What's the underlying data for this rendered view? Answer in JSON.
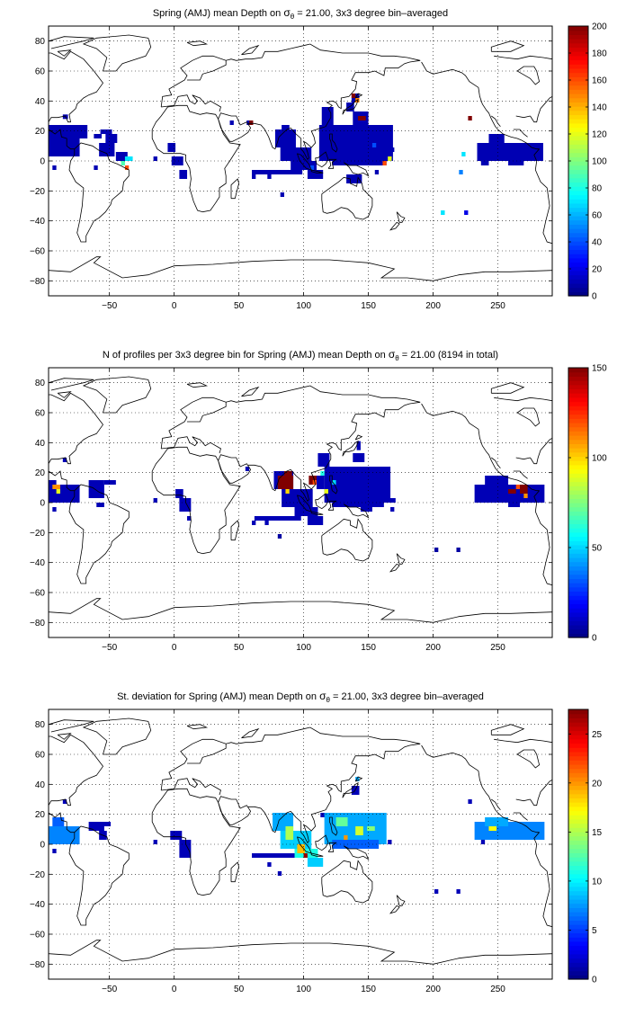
{
  "chart_data": [
    {
      "type": "heatmap",
      "title_parts": [
        "Spring (AMJ) mean Depth on ",
        "σ",
        "θ",
        " = 21.00, 3x3 degree bin–averaged"
      ],
      "xlim": [
        -97,
        292
      ],
      "ylim": [
        -90,
        90
      ],
      "xticks": [
        -50,
        0,
        50,
        100,
        150,
        200,
        250
      ],
      "yticks": [
        -80,
        -60,
        -40,
        -20,
        0,
        20,
        40,
        60,
        80
      ],
      "grid": true,
      "colorbar": {
        "min": 0,
        "max": 200,
        "ticks": [
          0,
          20,
          40,
          60,
          80,
          100,
          120,
          140,
          160,
          180,
          200
        ]
      },
      "default_value": 10,
      "bins": [
        {
          "x": -97,
          "y": 15,
          "w": 30,
          "h": 9
        },
        {
          "x": -97,
          "y": 3,
          "w": 24,
          "h": 12
        },
        {
          "x": -62,
          "y": 15,
          "w": 6,
          "h": 3
        },
        {
          "x": -57,
          "y": 18,
          "w": 9,
          "h": 3
        },
        {
          "x": -53,
          "y": 12,
          "w": 9,
          "h": 6
        },
        {
          "x": -58,
          "y": 3,
          "w": 12,
          "h": 9
        },
        {
          "x": -45,
          "y": 0,
          "w": 9,
          "h": 6
        },
        {
          "x": -86,
          "y": 28,
          "w": 4,
          "h": 3
        },
        {
          "x": -94,
          "y": -6,
          "w": 3,
          "h": 3
        },
        {
          "x": -62,
          "y": -6,
          "w": 3,
          "h": 3
        },
        {
          "x": -16,
          "y": 0,
          "w": 3,
          "h": 3
        },
        {
          "x": -5,
          "y": 6,
          "w": 6,
          "h": 6
        },
        {
          "x": -2,
          "y": -3,
          "w": 9,
          "h": 6
        },
        {
          "x": 4,
          "y": -12,
          "w": 6,
          "h": 6
        },
        {
          "x": 43,
          "y": 24,
          "w": 3,
          "h": 3
        },
        {
          "x": 56,
          "y": 24,
          "w": 3,
          "h": 3
        },
        {
          "x": 60,
          "y": -9,
          "w": 39,
          "h": 3
        },
        {
          "x": 60,
          "y": -12,
          "w": 3,
          "h": 3
        },
        {
          "x": 72,
          "y": -12,
          "w": 3,
          "h": 3
        },
        {
          "x": 78,
          "y": 9,
          "w": 16,
          "h": 12
        },
        {
          "x": 82,
          "y": 0,
          "w": 24,
          "h": 9
        },
        {
          "x": 90,
          "y": -6,
          "w": 20,
          "h": 6
        },
        {
          "x": 103,
          "y": -12,
          "w": 12,
          "h": 6
        },
        {
          "x": 110,
          "y": -12,
          "w": 3,
          "h": 3
        },
        {
          "x": 83,
          "y": 21,
          "w": 6,
          "h": 3
        },
        {
          "x": 114,
          "y": 24,
          "w": 9,
          "h": 12
        },
        {
          "x": 112,
          "y": 0,
          "w": 57,
          "h": 24
        },
        {
          "x": 122,
          "y": -3,
          "w": 42,
          "h": 6
        },
        {
          "x": 138,
          "y": 21,
          "w": 12,
          "h": 12
        },
        {
          "x": 133,
          "y": 33,
          "w": 6,
          "h": 6
        },
        {
          "x": 137,
          "y": 39,
          "w": 6,
          "h": 6
        },
        {
          "x": 143,
          "y": 27,
          "w": 6,
          "h": 3
        },
        {
          "x": 133,
          "y": -15,
          "w": 12,
          "h": 6
        },
        {
          "x": 167,
          "y": 6,
          "w": 3,
          "h": 3
        },
        {
          "x": 155,
          "y": -9,
          "w": 3,
          "h": 3
        },
        {
          "x": 234,
          "y": 0,
          "w": 51,
          "h": 12
        },
        {
          "x": 243,
          "y": 12,
          "w": 12,
          "h": 6
        },
        {
          "x": 258,
          "y": -3,
          "w": 12,
          "h": 3
        },
        {
          "x": 237,
          "y": -3,
          "w": 6,
          "h": 3
        },
        {
          "x": -41,
          "y": -3,
          "w": 3,
          "h": 3,
          "v": 90
        },
        {
          "x": -38,
          "y": 0,
          "w": 6,
          "h": 3,
          "v": 70
        },
        {
          "x": -38,
          "y": -6,
          "w": 3,
          "h": 3,
          "v": 160
        },
        {
          "x": 58,
          "y": 24,
          "w": 3,
          "h": 3,
          "v": 200
        },
        {
          "x": 137,
          "y": 42,
          "w": 3,
          "h": 3,
          "v": 200
        },
        {
          "x": 142,
          "y": 27,
          "w": 6,
          "h": 3,
          "v": 200
        },
        {
          "x": 140,
          "y": 39,
          "w": 3,
          "h": 3,
          "v": 150
        },
        {
          "x": 227,
          "y": 27,
          "w": 3,
          "h": 3,
          "v": 200
        },
        {
          "x": 161,
          "y": -3,
          "w": 3,
          "h": 3,
          "v": 160
        },
        {
          "x": 165,
          "y": 0,
          "w": 3,
          "h": 3,
          "v": 120
        },
        {
          "x": 153,
          "y": 9,
          "w": 3,
          "h": 3,
          "v": 40
        },
        {
          "x": 222,
          "y": 3,
          "w": 3,
          "h": 3,
          "v": 70
        },
        {
          "x": 220,
          "y": -9,
          "w": 3,
          "h": 3,
          "v": 50
        },
        {
          "x": 206,
          "y": -36,
          "w": 3,
          "h": 3,
          "v": 70
        },
        {
          "x": 206,
          "y": -36,
          "w": 3,
          "h": 3,
          "v": 70
        },
        {
          "x": 224,
          "y": -36,
          "w": 3,
          "h": 3,
          "v": 20
        },
        {
          "x": 82,
          "y": -24,
          "w": 3,
          "h": 3,
          "v": 10
        },
        {
          "x": 105,
          "y": -6,
          "w": 3,
          "h": 3,
          "v": 40
        }
      ]
    },
    {
      "type": "heatmap",
      "title_parts": [
        "N of profiles per 3x3 degree bin for Spring (AMJ) mean Depth on ",
        "σ",
        "θ",
        " = 21.00 (8194 in total)"
      ],
      "xlim": [
        -97,
        292
      ],
      "ylim": [
        -90,
        90
      ],
      "xticks": [
        -50,
        0,
        50,
        100,
        150,
        200,
        250
      ],
      "yticks": [
        -80,
        -60,
        -40,
        -20,
        0,
        20,
        40,
        60,
        80
      ],
      "grid": true,
      "colorbar": {
        "min": 0,
        "max": 150,
        "ticks": [
          0,
          50,
          100,
          150
        ]
      },
      "default_value": 8,
      "bins": [
        {
          "x": -97,
          "y": 0,
          "w": 24,
          "h": 12
        },
        {
          "x": -97,
          "y": 12,
          "w": 6,
          "h": 3
        },
        {
          "x": -66,
          "y": 3,
          "w": 12,
          "h": 12
        },
        {
          "x": -54,
          "y": 12,
          "w": 9,
          "h": 3
        },
        {
          "x": -60,
          "y": -3,
          "w": 6,
          "h": 3
        },
        {
          "x": -86,
          "y": 27,
          "w": 3,
          "h": 3
        },
        {
          "x": -94,
          "y": -6,
          "w": 3,
          "h": 3
        },
        {
          "x": -16,
          "y": 0,
          "w": 3,
          "h": 3
        },
        {
          "x": 1,
          "y": 3,
          "w": 6,
          "h": 6
        },
        {
          "x": 4,
          "y": -6,
          "w": 9,
          "h": 9
        },
        {
          "x": 10,
          "y": -12,
          "w": 3,
          "h": 3
        },
        {
          "x": 55,
          "y": 21,
          "w": 3,
          "h": 3
        },
        {
          "x": 62,
          "y": -12,
          "w": 36,
          "h": 3
        },
        {
          "x": 60,
          "y": -15,
          "w": 3,
          "h": 3
        },
        {
          "x": 70,
          "y": -15,
          "w": 3,
          "h": 3
        },
        {
          "x": 77,
          "y": 9,
          "w": 15,
          "h": 12
        },
        {
          "x": 83,
          "y": -3,
          "w": 24,
          "h": 12
        },
        {
          "x": 93,
          "y": -9,
          "w": 18,
          "h": 6
        },
        {
          "x": 103,
          "y": -15,
          "w": 12,
          "h": 6
        },
        {
          "x": 110,
          "y": 9,
          "w": 6,
          "h": 9
        },
        {
          "x": 111,
          "y": 24,
          "w": 9,
          "h": 9
        },
        {
          "x": 116,
          "y": 0,
          "w": 51,
          "h": 24
        },
        {
          "x": 122,
          "y": -3,
          "w": 40,
          "h": 6
        },
        {
          "x": 138,
          "y": 27,
          "w": 9,
          "h": 6
        },
        {
          "x": 141,
          "y": 35,
          "w": 3,
          "h": 6
        },
        {
          "x": 147,
          "y": 15,
          "w": 6,
          "h": 3
        },
        {
          "x": 144,
          "y": -6,
          "w": 9,
          "h": 6
        },
        {
          "x": 165,
          "y": 0,
          "w": 6,
          "h": 3
        },
        {
          "x": 167,
          "y": -6,
          "w": 3,
          "h": 3
        },
        {
          "x": 232,
          "y": 0,
          "w": 54,
          "h": 12
        },
        {
          "x": 240,
          "y": 12,
          "w": 18,
          "h": 6
        },
        {
          "x": 258,
          "y": -3,
          "w": 9,
          "h": 3
        },
        {
          "x": -94,
          "y": 9,
          "w": 6,
          "h": 3,
          "v": 110
        },
        {
          "x": -91,
          "y": 6,
          "w": 3,
          "h": 3,
          "v": 90
        },
        {
          "x": 80,
          "y": 9,
          "w": 12,
          "h": 9,
          "v": 150
        },
        {
          "x": 85,
          "y": 18,
          "w": 6,
          "h": 3,
          "v": 150
        },
        {
          "x": 86,
          "y": 6,
          "w": 3,
          "h": 3,
          "v": 100
        },
        {
          "x": 104,
          "y": 12,
          "w": 6,
          "h": 6,
          "v": 150
        },
        {
          "x": 107,
          "y": 12,
          "w": 3,
          "h": 3,
          "v": 120
        },
        {
          "x": 113,
          "y": 18,
          "w": 3,
          "h": 3,
          "v": 60
        },
        {
          "x": 122,
          "y": 12,
          "w": 3,
          "h": 3,
          "v": 50
        },
        {
          "x": 116,
          "y": 6,
          "w": 3,
          "h": 3,
          "v": 90
        },
        {
          "x": 258,
          "y": 6,
          "w": 6,
          "h": 3,
          "v": 150
        },
        {
          "x": 267,
          "y": 6,
          "w": 6,
          "h": 6,
          "v": 150
        },
        {
          "x": 264,
          "y": 9,
          "w": 3,
          "h": 3,
          "v": 120
        },
        {
          "x": 270,
          "y": 3,
          "w": 3,
          "h": 3,
          "v": 110
        },
        {
          "x": 201,
          "y": -33,
          "w": 3,
          "h": 3,
          "v": 5
        },
        {
          "x": 218,
          "y": -33,
          "w": 3,
          "h": 3,
          "v": 5
        },
        {
          "x": 80,
          "y": -24,
          "w": 3,
          "h": 3,
          "v": 5
        }
      ]
    },
    {
      "type": "heatmap",
      "title_parts": [
        "St. deviation for Spring (AMJ) mean Depth on ",
        "σ",
        "θ",
        " = 21.00, 3x3 degree bin–averaged"
      ],
      "xlim": [
        -97,
        292
      ],
      "ylim": [
        -90,
        90
      ],
      "xticks": [
        -50,
        0,
        50,
        100,
        150,
        200,
        250
      ],
      "yticks": [
        -80,
        -60,
        -40,
        -20,
        0,
        20,
        40,
        60,
        80
      ],
      "grid": true,
      "colorbar": {
        "min": 0,
        "max": 27.5,
        "ticks": [
          0,
          5,
          10,
          15,
          20,
          25
        ]
      },
      "default_value": 1.5,
      "bins": [
        {
          "x": -97,
          "y": 0,
          "w": 24,
          "h": 12,
          "v": 7
        },
        {
          "x": -94,
          "y": 12,
          "w": 9,
          "h": 6,
          "v": 6
        },
        {
          "x": -66,
          "y": 9,
          "w": 12,
          "h": 6
        },
        {
          "x": -55,
          "y": 12,
          "w": 6,
          "h": 3
        },
        {
          "x": -58,
          "y": 3,
          "w": 6,
          "h": 6
        },
        {
          "x": -86,
          "y": 27,
          "w": 3,
          "h": 3
        },
        {
          "x": -94,
          "y": -6,
          "w": 3,
          "h": 3
        },
        {
          "x": -16,
          "y": 0,
          "w": 3,
          "h": 3
        },
        {
          "x": -3,
          "y": 3,
          "w": 9,
          "h": 6
        },
        {
          "x": 4,
          "y": -9,
          "w": 9,
          "h": 12
        },
        {
          "x": 60,
          "y": -9,
          "w": 36,
          "h": 3
        },
        {
          "x": 72,
          "y": -15,
          "w": 3,
          "h": 3
        },
        {
          "x": 76,
          "y": 9,
          "w": 16,
          "h": 12,
          "v": 8
        },
        {
          "x": 82,
          "y": -3,
          "w": 24,
          "h": 12,
          "v": 9
        },
        {
          "x": 93,
          "y": -9,
          "w": 18,
          "h": 6,
          "v": 11
        },
        {
          "x": 103,
          "y": -15,
          "w": 12,
          "h": 6,
          "v": 9
        },
        {
          "x": 86,
          "y": 3,
          "w": 6,
          "h": 9,
          "v": 15
        },
        {
          "x": 95,
          "y": -6,
          "w": 6,
          "h": 6,
          "v": 19
        },
        {
          "x": 100,
          "y": -9,
          "w": 3,
          "h": 3,
          "v": 27
        },
        {
          "x": 113,
          "y": 18,
          "w": 6,
          "h": 3
        },
        {
          "x": 116,
          "y": 0,
          "w": 48,
          "h": 21,
          "v": 8
        },
        {
          "x": 122,
          "y": -3,
          "w": 36,
          "h": 6,
          "v": 6
        },
        {
          "x": 125,
          "y": 12,
          "w": 9,
          "h": 6,
          "v": 13
        },
        {
          "x": 140,
          "y": 6,
          "w": 6,
          "h": 6,
          "v": 16
        },
        {
          "x": 131,
          "y": 3,
          "w": 3,
          "h": 3,
          "v": 20
        },
        {
          "x": 149,
          "y": 9,
          "w": 6,
          "h": 3,
          "v": 14
        },
        {
          "x": 137,
          "y": 33,
          "w": 6,
          "h": 6
        },
        {
          "x": 140,
          "y": 42,
          "w": 3,
          "h": 3,
          "v": 8
        },
        {
          "x": 165,
          "y": 0,
          "w": 3,
          "h": 3
        },
        {
          "x": 232,
          "y": 3,
          "w": 54,
          "h": 12,
          "v": 7
        },
        {
          "x": 240,
          "y": 12,
          "w": 18,
          "h": 6,
          "v": 8
        },
        {
          "x": 243,
          "y": 9,
          "w": 6,
          "h": 3,
          "v": 17
        },
        {
          "x": 237,
          "y": 0,
          "w": 3,
          "h": 3
        },
        {
          "x": 227,
          "y": 27,
          "w": 3,
          "h": 3
        },
        {
          "x": 201,
          "y": -33,
          "w": 3,
          "h": 3
        },
        {
          "x": 218,
          "y": -33,
          "w": 3,
          "h": 3
        },
        {
          "x": 80,
          "y": -21,
          "w": 3,
          "h": 3
        }
      ]
    }
  ]
}
